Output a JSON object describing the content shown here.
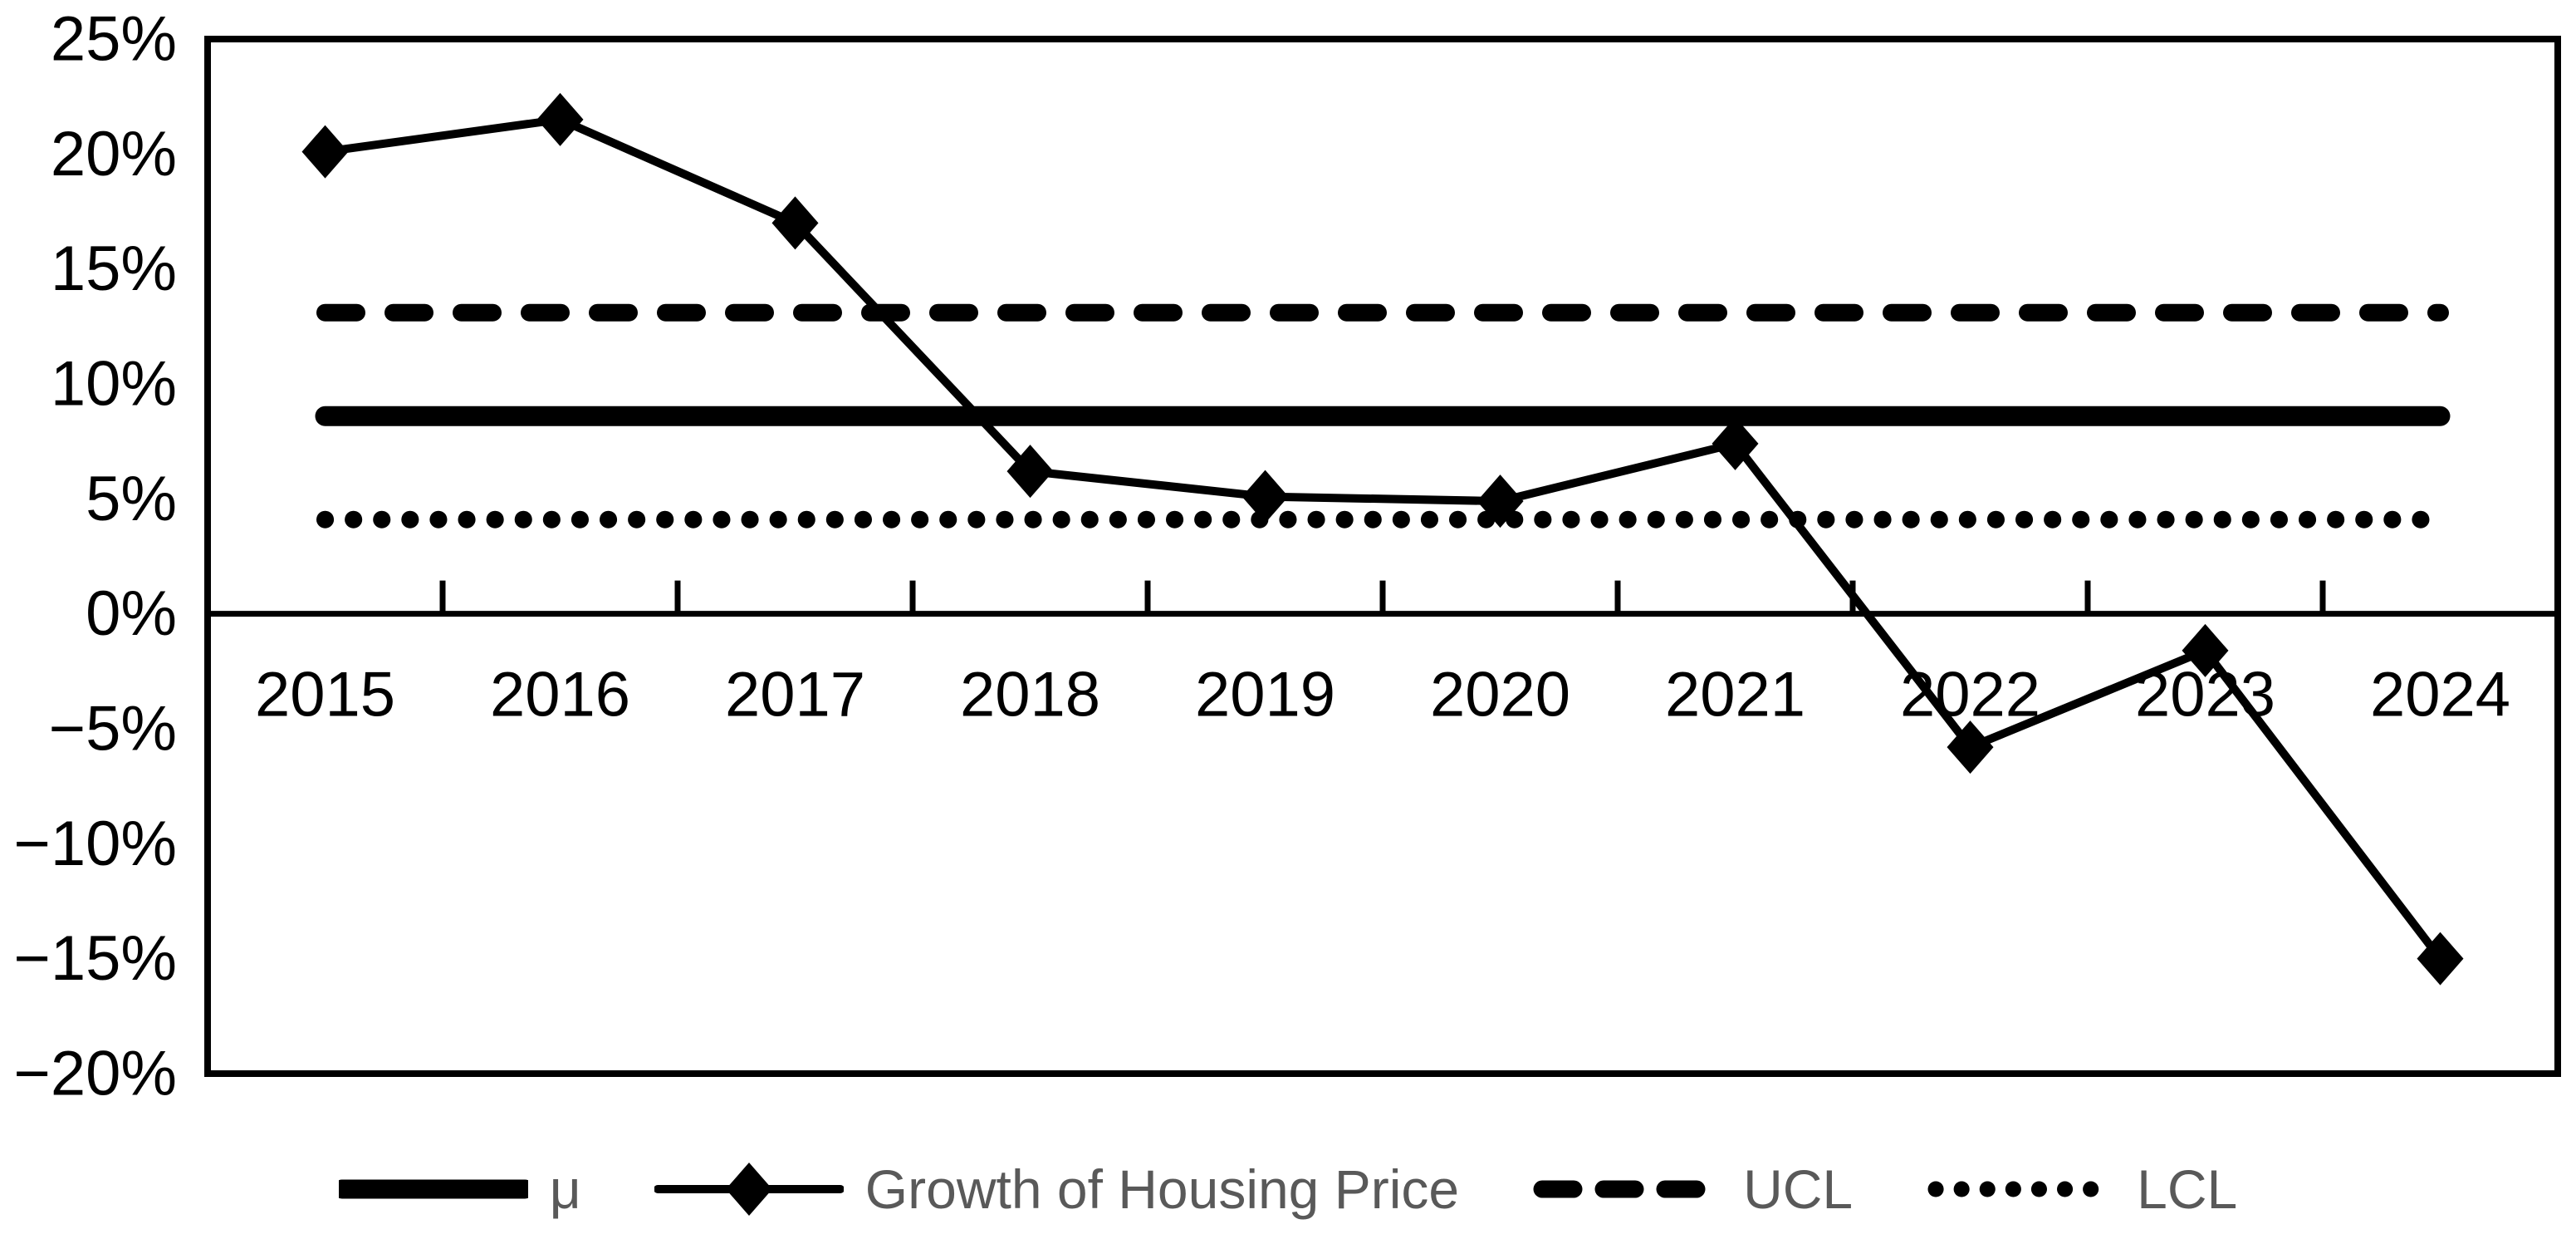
{
  "chart_data": {
    "type": "line",
    "title": "",
    "categories": [
      "2015",
      "2016",
      "2017",
      "2018",
      "2019",
      "2020",
      "2021",
      "2022",
      "2023",
      "2024"
    ],
    "series": [
      {
        "name": "Growth of Housing Price",
        "values": [
          20.1,
          21.5,
          17.0,
          6.2,
          5.1,
          4.9,
          7.4,
          -5.8,
          -1.6,
          -15.0
        ],
        "marker": "diamond",
        "line_style": "solid",
        "color": "#000000"
      }
    ],
    "reference_lines": [
      {
        "name": "μ",
        "value": 8.6,
        "style": "solid-thick",
        "color": "#000000"
      },
      {
        "name": "UCL",
        "value": 13.1,
        "style": "dashed",
        "color": "#000000"
      },
      {
        "name": "LCL",
        "value": 4.1,
        "style": "dotted",
        "color": "#000000"
      }
    ],
    "y_axis": {
      "min": -20,
      "max": 25,
      "step": 5,
      "format": "percent",
      "tick_labels": [
        "25%",
        "20%",
        "15%",
        "10%",
        "5%",
        "0%",
        "−5%",
        "−10%",
        "−15%",
        "−20%"
      ]
    },
    "x_axis": {
      "tick_labels": [
        "2015",
        "2016",
        "2017",
        "2018",
        "2019",
        "2020",
        "2021",
        "2022",
        "2023",
        "2024"
      ]
    },
    "grid": false,
    "legend_position": "bottom",
    "legend": [
      {
        "label": "μ",
        "sample": "solid-thick"
      },
      {
        "label": "Growth of Housing Price",
        "sample": "line-diamond"
      },
      {
        "label": "UCL",
        "sample": "dashed"
      },
      {
        "label": "LCL",
        "sample": "dotted"
      }
    ],
    "colors": {
      "series": "#000000",
      "axis": "#000000",
      "axis_labels": "#000000",
      "legend_text": "#595959",
      "background": "#ffffff"
    }
  }
}
